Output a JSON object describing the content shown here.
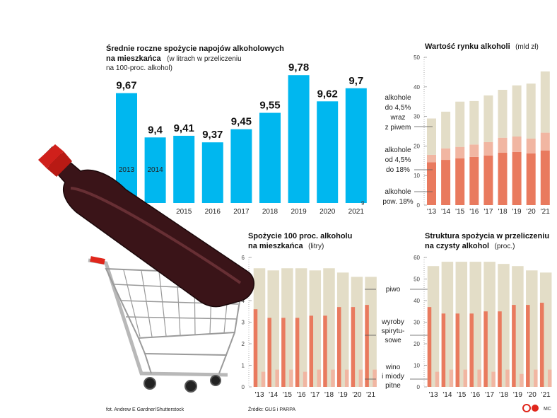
{
  "colors": {
    "cyan": "#00b7ef",
    "beige": "#e3ddc7",
    "salmon": "#e97a5e",
    "pink": "#f1b6a2",
    "axis": "#999999"
  },
  "footer": {
    "photo_credit": "fot. Andrew E Gardner/Shutterstock",
    "source": "Źródło: GUS i PARPA",
    "logo_text": "",
    "author": "MC"
  },
  "illustration": {
    "description_icon": "wine-bottle-in-shopping-cart-icon"
  },
  "chart_data": [
    {
      "type": "bar",
      "title": "Średnie roczne spożycie napojów alkoholowych na mieszkańca",
      "title_lines": [
        "Średnie roczne spożycie napojów alkoholowych",
        "na mieszkańca"
      ],
      "subtitle_inline": "(w litrach w przeliczeniu",
      "subtitle_line3": "na 100-proc. alkohol)",
      "categories": [
        "2013",
        "2014",
        "2015",
        "2016",
        "2017",
        "2018",
        "2019",
        "2020",
        "2021"
      ],
      "values": [
        9.67,
        9.4,
        9.41,
        9.37,
        9.45,
        9.55,
        9.78,
        9.62,
        9.7
      ],
      "value_labels": [
        "9,67",
        "9,4",
        "9,41",
        "9,37",
        "9,45",
        "9,55",
        "9,78",
        "9,62",
        "9,7"
      ],
      "axis_marker": "9",
      "ylim": [
        9.0,
        9.85
      ],
      "color": "#00b7ef"
    },
    {
      "type": "bar",
      "stacked": true,
      "title": "Wartość rynku alkoholi",
      "unit": "(mld zł)",
      "categories": [
        "'13",
        "'14",
        "'15",
        "'16",
        "'17",
        "'18",
        "'19",
        "'20",
        "'21"
      ],
      "yticks": [
        "0",
        "10",
        "20",
        "30",
        "40",
        "50"
      ],
      "ylim": [
        0,
        50
      ],
      "series": [
        {
          "name": "alkohole pow. 18%",
          "name_lines": [
            "alkohole",
            "pow. 18%"
          ],
          "color": "#e97a5e",
          "values": [
            14.5,
            15.3,
            15.8,
            16.3,
            16.8,
            17.7,
            18.0,
            17.5,
            18.5
          ]
        },
        {
          "name": "alkohole od 4,5% do 18%",
          "name_lines": [
            "alkohole",
            "od 4,5%",
            "do 18%"
          ],
          "color": "#f1b6a2",
          "values": [
            2.5,
            3.9,
            3.9,
            4.2,
            4.5,
            5.1,
            5.2,
            5.0,
            6.0
          ]
        },
        {
          "name": "alkohole do 4,5% wraz z piwem",
          "name_lines": [
            "alkohole",
            "do 4,5%",
            "wraz",
            "z piwem"
          ],
          "color": "#e3ddc7",
          "values": [
            12.3,
            12.4,
            15.3,
            14.7,
            15.8,
            16.2,
            17.3,
            18.6,
            20.7
          ]
        }
      ]
    },
    {
      "type": "bar",
      "grouped": true,
      "title": "Spożycie 100 proc. alkoholu na mieszkańca",
      "title_lines": [
        "Spożycie 100 proc. alkoholu",
        "na mieszkańca"
      ],
      "unit": "(litry)",
      "categories": [
        "'13",
        "'14",
        "'15",
        "'16",
        "'17",
        "'18",
        "'19",
        "'20",
        "'21"
      ],
      "yticks": [
        "0",
        "1",
        "2",
        "3",
        "4",
        "5",
        "6"
      ],
      "ylim": [
        0,
        6
      ],
      "series": [
        {
          "name": "piwo",
          "name_lines": [
            "piwo"
          ],
          "color": "#e3ddc7",
          "values": [
            5.5,
            5.4,
            5.5,
            5.5,
            5.4,
            5.5,
            5.3,
            5.1,
            5.1
          ]
        },
        {
          "name": "wyroby spirytusowe",
          "name_lines": [
            "wyroby",
            "spirytu-",
            "sowe"
          ],
          "color": "#e97a5e",
          "values": [
            3.6,
            3.2,
            3.2,
            3.2,
            3.3,
            3.3,
            3.7,
            3.7,
            3.8
          ]
        },
        {
          "name": "wino i miody pitne",
          "name_lines": [
            "wino",
            "i miody",
            "pitne"
          ],
          "color": "#f1b6a2",
          "values": [
            0.7,
            0.8,
            0.8,
            0.7,
            0.8,
            0.8,
            0.8,
            0.8,
            0.8
          ]
        }
      ]
    },
    {
      "type": "bar",
      "grouped": true,
      "title": "Struktura spożycia w przeliczeniu na czysty alkohol",
      "title_lines": [
        "Struktura spożycia w przeliczeniu",
        "na czysty alkohol"
      ],
      "unit": "(proc.)",
      "categories": [
        "'13",
        "'14",
        "'15",
        "'16",
        "'17",
        "'18",
        "'19",
        "'20",
        "'21"
      ],
      "yticks": [
        "0",
        "10",
        "20",
        "30",
        "40",
        "50",
        "60"
      ],
      "ylim": [
        0,
        60
      ],
      "series": [
        {
          "name": "piwo",
          "color": "#e3ddc7",
          "values": [
            56,
            58,
            58,
            58,
            58,
            57,
            56,
            54,
            53
          ]
        },
        {
          "name": "wyroby spirytusowe",
          "color": "#e97a5e",
          "values": [
            37,
            34,
            34,
            34,
            35,
            35,
            38,
            38,
            39
          ]
        },
        {
          "name": "wino i miody pitne",
          "color": "#f1b6a2",
          "values": [
            7,
            8,
            8,
            8,
            7,
            8,
            6,
            8,
            8
          ]
        }
      ]
    }
  ]
}
